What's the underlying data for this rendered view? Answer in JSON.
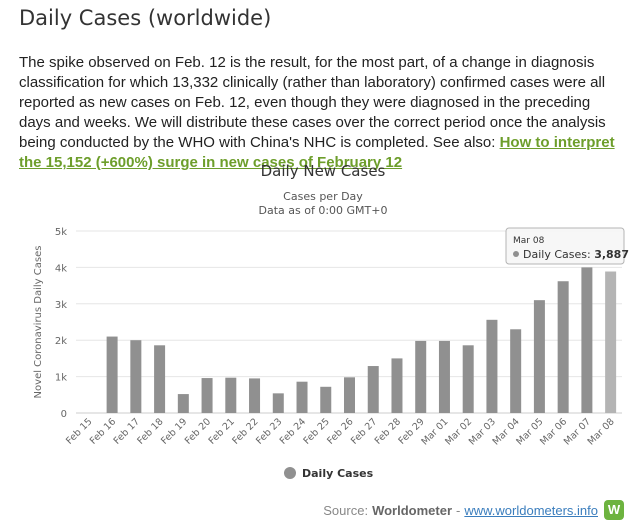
{
  "page": {
    "title": "Daily Cases (worldwide)",
    "paragraph_text": "The spike observed on Feb. 12 is the result, for the most part, of a change in diagnosis classification for which 13,332 clinically (rather than laboratory) confirmed cases were all reported as new cases on Feb. 12, even though they were diagnosed in the preceding days and weeks. We will distribute these cases over the correct period once the analysis being conducted by the WHO with China's NHC is completed. See also: ",
    "link_text": "How to interpret the 15,152 (+600%) surge in new cases of February 12"
  },
  "source": {
    "label": "Source:",
    "brand": "Worldometer",
    "separator": "-",
    "url_text": "www.worldometers.info",
    "logo_letter": "W"
  },
  "colors": {
    "bar": "#909090",
    "bar_hover": "#b4b4b4",
    "link": "#6d9e2b",
    "grid": "#e6e6e6"
  },
  "chart_data": {
    "type": "bar",
    "title": "Daily New Cases",
    "subtitle_line1": "Cases per Day",
    "subtitle_line2": "Data as of 0:00 GMT+0",
    "ylabel": "Novel Coronavirus Daily Cases",
    "xlabel": "",
    "ylim": [
      0,
      5000
    ],
    "yticks": [
      0,
      1000,
      2000,
      3000,
      4000,
      5000
    ],
    "ytick_labels": [
      "0",
      "1k",
      "2k",
      "3k",
      "4k",
      "5k"
    ],
    "grid": true,
    "legend_position": "bottom-center",
    "categories": [
      "Feb 15",
      "Feb 16",
      "Feb 17",
      "Feb 18",
      "Feb 19",
      "Feb 20",
      "Feb 21",
      "Feb 22",
      "Feb 23",
      "Feb 24",
      "Feb 25",
      "Feb 26",
      "Feb 27",
      "Feb 28",
      "Feb 29",
      "Mar 01",
      "Mar 02",
      "Mar 03",
      "Mar 04",
      "Mar 05",
      "Mar 06",
      "Mar 07",
      "Mar 08"
    ],
    "series": [
      {
        "name": "Daily Cases",
        "values": [
          0,
          2100,
          2000,
          1860,
          520,
          960,
          970,
          950,
          540,
          860,
          720,
          980,
          1290,
          1500,
          1980,
          1980,
          1860,
          2560,
          2300,
          3100,
          3620,
          4000,
          3887
        ]
      }
    ],
    "tooltip": {
      "date": "Mar 08",
      "series_name": "Daily Cases",
      "value_text": "3,887"
    }
  }
}
